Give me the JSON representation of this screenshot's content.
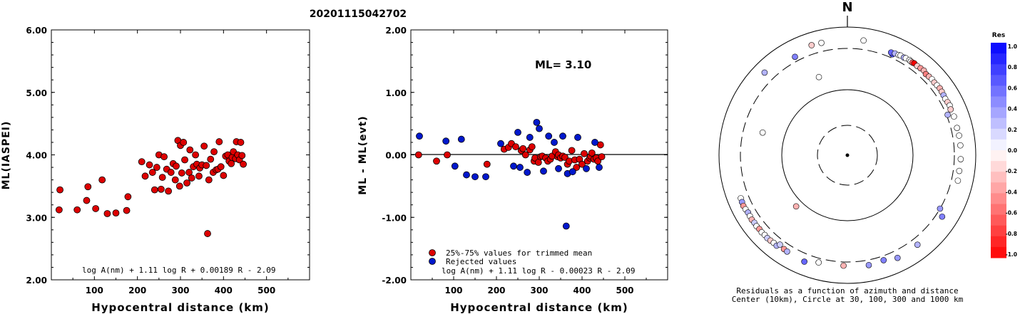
{
  "title": "20201115042702",
  "chart_data": [
    {
      "type": "scatter",
      "xlabel": "Hypocentral distance (km)",
      "ylabel": "ML(IASPEI)",
      "xlim": [
        0,
        600
      ],
      "ylim": [
        2.0,
        6.0
      ],
      "x_ticks": [
        "100",
        "200",
        "300",
        "400",
        "500"
      ],
      "y_ticks": [
        "2.00",
        "3.00",
        "4.00",
        "5.00",
        "6.00"
      ],
      "formula": "log A(nm) + 1.11 log R + 0.00189 R - 2.09",
      "series": [
        {
          "color": "#dd0000",
          "points": [
            [
              20,
              3.44
            ],
            [
              18,
              3.12
            ],
            [
              60,
              3.12
            ],
            [
              82,
              3.27
            ],
            [
              85,
              3.49
            ],
            [
              103,
              3.14
            ],
            [
              118,
              3.6
            ],
            [
              130,
              3.06
            ],
            [
              150,
              3.07
            ],
            [
              175,
              3.11
            ],
            [
              178,
              3.33
            ],
            [
              210,
              3.89
            ],
            [
              218,
              3.66
            ],
            [
              228,
              3.84
            ],
            [
              235,
              3.72
            ],
            [
              240,
              3.44
            ],
            [
              245,
              3.8
            ],
            [
              250,
              4.0
            ],
            [
              255,
              3.45
            ],
            [
              258,
              3.64
            ],
            [
              262,
              3.97
            ],
            [
              268,
              3.77
            ],
            [
              272,
              3.42
            ],
            [
              278,
              3.72
            ],
            [
              283,
              3.86
            ],
            [
              288,
              3.6
            ],
            [
              290,
              3.82
            ],
            [
              294,
              4.23
            ],
            [
              298,
              3.5
            ],
            [
              300,
              4.15
            ],
            [
              303,
              3.71
            ],
            [
              307,
              4.2
            ],
            [
              310,
              3.92
            ],
            [
              315,
              3.55
            ],
            [
              320,
              3.72
            ],
            [
              322,
              4.08
            ],
            [
              326,
              3.63
            ],
            [
              330,
              3.81
            ],
            [
              335,
              4.0
            ],
            [
              338,
              3.85
            ],
            [
              343,
              3.66
            ],
            [
              345,
              3.79
            ],
            [
              350,
              3.84
            ],
            [
              355,
              4.14
            ],
            [
              360,
              3.83
            ],
            [
              363,
              2.74
            ],
            [
              366,
              3.6
            ],
            [
              370,
              3.93
            ],
            [
              376,
              3.72
            ],
            [
              378,
              4.05
            ],
            [
              383,
              3.76
            ],
            [
              387,
              3.77
            ],
            [
              390,
              4.21
            ],
            [
              394,
              3.81
            ],
            [
              400,
              3.67
            ],
            [
              405,
              3.98
            ],
            [
              410,
              4.0
            ],
            [
              413,
              3.9
            ],
            [
              418,
              3.86
            ],
            [
              420,
              3.96
            ],
            [
              423,
              4.05
            ],
            [
              428,
              3.94
            ],
            [
              430,
              4.21
            ],
            [
              433,
              4.0
            ],
            [
              437,
              3.92
            ],
            [
              440,
              4.2
            ],
            [
              443,
              3.99
            ],
            [
              446,
              3.85
            ]
          ]
        }
      ]
    },
    {
      "type": "scatter",
      "xlabel": "Hypocentral distance (km)",
      "ylabel": "ML - ML(evt)",
      "xlim": [
        0,
        600
      ],
      "ylim": [
        -2.0,
        2.0
      ],
      "x_ticks": [
        "100",
        "200",
        "300",
        "400",
        "500"
      ],
      "y_ticks": [
        "-2.00",
        "-1.00",
        "0.00",
        "1.00",
        "2.00"
      ],
      "annotation": "ML= 3.10",
      "reference_line": 0.0,
      "formula": "log A(nm) + 1.11 log R - 0.00023 R - 2.09",
      "legend": [
        {
          "label": "25%-75% values for trimmed mean",
          "color": "#dd0000"
        },
        {
          "label": "Rejected values",
          "color": "#0018cc"
        }
      ],
      "series": [
        {
          "name": "25%-75% values for trimmed mean",
          "color": "#dd0000",
          "points": [
            [
              18,
              0.0
            ],
            [
              60,
              -0.1
            ],
            [
              85,
              0.0
            ],
            [
              178,
              -0.15
            ],
            [
              218,
              0.09
            ],
            [
              228,
              0.12
            ],
            [
              235,
              0.18
            ],
            [
              245,
              0.13
            ],
            [
              258,
              0.07
            ],
            [
              262,
              0.1
            ],
            [
              268,
              0.0
            ],
            [
              278,
              0.08
            ],
            [
              283,
              0.13
            ],
            [
              288,
              -0.1
            ],
            [
              290,
              -0.05
            ],
            [
              298,
              -0.12
            ],
            [
              303,
              -0.03
            ],
            [
              307,
              -0.02
            ],
            [
              315,
              -0.05
            ],
            [
              320,
              -0.1
            ],
            [
              326,
              -0.07
            ],
            [
              330,
              -0.02
            ],
            [
              338,
              0.05
            ],
            [
              343,
              -0.03
            ],
            [
              345,
              0.0
            ],
            [
              350,
              -0.05
            ],
            [
              355,
              -0.02
            ],
            [
              360,
              -0.04
            ],
            [
              366,
              -0.15
            ],
            [
              370,
              -0.1
            ],
            [
              376,
              0.07
            ],
            [
              383,
              -0.08
            ],
            [
              387,
              -0.2
            ],
            [
              394,
              -0.07
            ],
            [
              400,
              -0.15
            ],
            [
              405,
              0.02
            ],
            [
              413,
              -0.1
            ],
            [
              418,
              -0.05
            ],
            [
              420,
              -0.02
            ],
            [
              423,
              0.03
            ],
            [
              428,
              -0.07
            ],
            [
              433,
              -0.05
            ],
            [
              437,
              -0.1
            ],
            [
              443,
              0.16
            ],
            [
              446,
              -0.03
            ]
          ]
        },
        {
          "name": "Rejected values",
          "color": "#0018cc",
          "points": [
            [
              20,
              0.3
            ],
            [
              82,
              0.22
            ],
            [
              103,
              -0.18
            ],
            [
              118,
              0.25
            ],
            [
              130,
              -0.32
            ],
            [
              150,
              -0.35
            ],
            [
              175,
              -0.35
            ],
            [
              210,
              0.18
            ],
            [
              240,
              -0.18
            ],
            [
              250,
              0.36
            ],
            [
              255,
              -0.2
            ],
            [
              272,
              -0.28
            ],
            [
              278,
              0.28
            ],
            [
              294,
              0.52
            ],
            [
              300,
              0.42
            ],
            [
              310,
              -0.26
            ],
            [
              322,
              0.3
            ],
            [
              335,
              0.2
            ],
            [
              345,
              -0.22
            ],
            [
              355,
              0.3
            ],
            [
              363,
              -1.14
            ],
            [
              366,
              -0.3
            ],
            [
              378,
              -0.27
            ],
            [
              390,
              0.28
            ],
            [
              410,
              -0.22
            ],
            [
              430,
              0.2
            ],
            [
              440,
              -0.2
            ]
          ]
        }
      ]
    },
    {
      "type": "scatter",
      "subtype": "polar",
      "north_label": "N",
      "caption_lines": [
        "Residuals as a function of azimuth and distance",
        "Center (10km), Circle at 30, 100, 300 and 1000 km"
      ],
      "colorbar_title": "Res",
      "colorbar_ticks": [
        "1.0",
        "0.8",
        "0.6",
        "0.4",
        "0.2",
        "0.0",
        "-0.2",
        "-0.4",
        "-0.6",
        "-0.8",
        "-1.0"
      ],
      "colorbar_range": [
        -1.0,
        1.0
      ],
      "rings_km": [
        30,
        100,
        300,
        1000
      ],
      "stations": [
        [
          8,
          500,
          0.0
        ],
        [
          -20,
          160,
          0.0
        ],
        [
          -75,
          180,
          0.0
        ],
        [
          -135,
          120,
          -0.3
        ],
        [
          24,
          370,
          0.7
        ],
        [
          23,
          395,
          0.6
        ],
        [
          25,
          410,
          0.3
        ],
        [
          27,
          415,
          0.0
        ],
        [
          28,
          425,
          0.0
        ],
        [
          30,
          420,
          0.3
        ],
        [
          31,
          430,
          0.0
        ],
        [
          33,
          440,
          0.0
        ],
        [
          34,
          430,
          0.0
        ],
        [
          35,
          430,
          -0.6
        ],
        [
          36,
          440,
          -1.0
        ],
        [
          38,
          430,
          -0.2
        ],
        [
          40,
          440,
          -0.4
        ],
        [
          42,
          450,
          -0.3
        ],
        [
          44,
          420,
          -0.5
        ],
        [
          46,
          430,
          -0.3
        ],
        [
          48,
          440,
          0.0
        ],
        [
          50,
          430,
          -0.2
        ],
        [
          52,
          440,
          0.0
        ],
        [
          54,
          450,
          -0.3
        ],
        [
          56,
          440,
          -0.2
        ],
        [
          58,
          430,
          0.3
        ],
        [
          60,
          420,
          0.0
        ],
        [
          62,
          430,
          -0.2
        ],
        [
          64,
          440,
          0.0
        ],
        [
          66,
          420,
          -0.2
        ],
        [
          70,
          430,
          0.0
        ],
        [
          76,
          420,
          0.0
        ],
        [
          80,
          430,
          0.0
        ],
        [
          85,
          430,
          0.0
        ],
        [
          92,
          430,
          0.0
        ],
        [
          98,
          420,
          0.0
        ],
        [
          103,
          430,
          0.0
        ],
        [
          68,
          320,
          0.3
        ],
        [
          -28,
          390,
          0.5
        ],
        [
          -13,
          485,
          0.0
        ],
        [
          -18,
          495,
          -0.2
        ],
        [
          -45,
          530,
          0.3
        ],
        [
          -112,
          470,
          0.0
        ],
        [
          -114,
          480,
          0.4
        ],
        [
          -116,
          490,
          -0.4
        ],
        [
          -118,
          480,
          0.0
        ],
        [
          -120,
          465,
          0.3
        ],
        [
          -122,
          470,
          0.0
        ],
        [
          -124,
          480,
          -0.3
        ],
        [
          -126,
          470,
          0.2
        ],
        [
          -128,
          480,
          0.0
        ],
        [
          -130,
          470,
          -0.4
        ],
        [
          -132,
          480,
          0.0
        ],
        [
          -134,
          470,
          0.0
        ],
        [
          -136,
          480,
          0.2
        ],
        [
          -138,
          470,
          -0.2
        ],
        [
          -140,
          460,
          0.0
        ],
        [
          -142,
          470,
          0.3
        ],
        [
          -146,
          430,
          -0.4
        ],
        [
          -148,
          440,
          0.3
        ],
        [
          -143,
          400,
          0.2
        ],
        [
          -158,
          470,
          0.6
        ],
        [
          -165,
          380,
          0.0
        ],
        [
          -178,
          370,
          -0.3
        ],
        [
          169,
          400,
          0.4
        ],
        [
          161,
          380,
          0.5
        ],
        [
          154,
          455,
          0.4
        ],
        [
          123,
          420,
          0.5
        ],
        [
          142,
          440,
          0.3
        ],
        [
          120,
          300,
          0.4
        ]
      ]
    }
  ]
}
